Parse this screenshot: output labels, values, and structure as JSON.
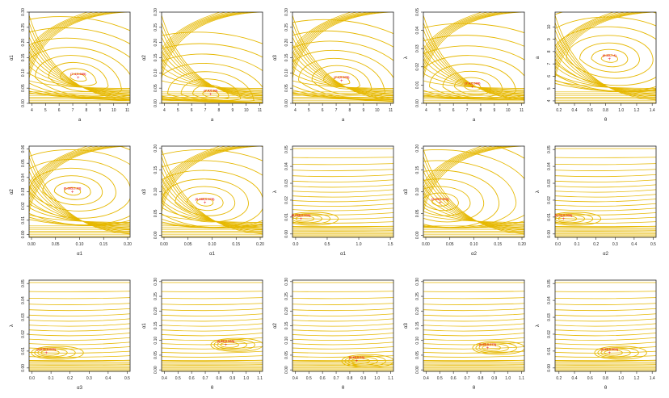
{
  "colors": {
    "contour": "#e6b800",
    "marker": "#e8222b",
    "axis": "#222222"
  },
  "chart_data": [
    {
      "type": "contour",
      "xlabel": "a",
      "ylabel": "α1",
      "xlim": [
        3.8,
        11.2
      ],
      "ylim": [
        0,
        0.3
      ],
      "xticks": [
        "4",
        "5",
        "6",
        "7",
        "8",
        "9",
        "10",
        "11"
      ],
      "yticks": [
        "0.00",
        "0.05",
        "0.10",
        "0.15",
        "0.20",
        "0.25",
        "0.30"
      ],
      "optimum": {
        "x": 7.4,
        "y": 0.085
      },
      "label": "(7.4,0.085)",
      "shape": "basin",
      "tilt": 0.3
    },
    {
      "type": "contour",
      "xlabel": "a",
      "ylabel": "α2",
      "xlim": [
        3.8,
        11.2
      ],
      "ylim": [
        0,
        0.3
      ],
      "xticks": [
        "4",
        "5",
        "6",
        "7",
        "8",
        "9",
        "10",
        "11"
      ],
      "yticks": [
        "0.00",
        "0.05",
        "0.10",
        "0.15",
        "0.20",
        "0.25",
        "0.30"
      ],
      "optimum": {
        "x": 7.4,
        "y": 0.03
      },
      "label": "(7.4,0.03)",
      "shape": "basin",
      "tilt": 0.2
    },
    {
      "type": "contour",
      "xlabel": "a",
      "ylabel": "α3",
      "xlim": [
        3.8,
        11.2
      ],
      "ylim": [
        0,
        0.3
      ],
      "xticks": [
        "4",
        "5",
        "6",
        "7",
        "8",
        "9",
        "10",
        "11"
      ],
      "yticks": [
        "0.00",
        "0.05",
        "0.10",
        "0.15",
        "0.20",
        "0.25",
        "0.30"
      ],
      "optimum": {
        "x": 7.4,
        "y": 0.075
      },
      "label": "(7.4,0.075)",
      "shape": "basin",
      "tilt": 0.3
    },
    {
      "type": "contour",
      "xlabel": "a",
      "ylabel": "λ",
      "xlim": [
        3.8,
        11.2
      ],
      "ylim": [
        0,
        0.05
      ],
      "xticks": [
        "4",
        "5",
        "6",
        "7",
        "8",
        "9",
        "10",
        "11"
      ],
      "yticks": [
        "0.00",
        "0.01",
        "0.02",
        "0.03",
        "0.04",
        "0.05"
      ],
      "optimum": {
        "x": 7.4,
        "y": 0.009
      },
      "label": "(7.4,0.009)",
      "shape": "basin",
      "tilt": 0.1
    },
    {
      "type": "contour",
      "xlabel": "θ",
      "ylabel": "a",
      "xlim": [
        0.15,
        1.45
      ],
      "ylim": [
        3.8,
        11.2
      ],
      "xticks": [
        "0.2",
        "0.4",
        "0.6",
        "0.8",
        "1.0",
        "1.2",
        "1.4"
      ],
      "yticks": [
        "4",
        "5",
        "6",
        "7",
        "8",
        "9",
        "10"
      ],
      "optimum": {
        "x": 0.85,
        "y": 7.4
      },
      "label": "(0.85,7.4)",
      "shape": "basin",
      "tilt": 0
    },
    {
      "type": "contour",
      "xlabel": "α1",
      "ylabel": "α2",
      "xlim": [
        -0.005,
        0.205
      ],
      "ylim": [
        -0.002,
        0.062
      ],
      "xticks": [
        "0.00",
        "0.05",
        "0.10",
        "0.15",
        "0.20"
      ],
      "yticks": [
        "0.00",
        "0.01",
        "0.02",
        "0.03",
        "0.04",
        "0.05",
        "0.06"
      ],
      "optimum": {
        "x": 0.085,
        "y": 0.03
      },
      "label": "(0.085,0.03)",
      "shape": "basin",
      "tilt": 0
    },
    {
      "type": "contour",
      "xlabel": "α1",
      "ylabel": "α3",
      "xlim": [
        -0.005,
        0.205
      ],
      "ylim": [
        -0.005,
        0.205
      ],
      "xticks": [
        "0.00",
        "0.05",
        "0.10",
        "0.15",
        "0.20"
      ],
      "yticks": [
        "0.00",
        "0.05",
        "0.10",
        "0.15",
        "0.20"
      ],
      "optimum": {
        "x": 0.085,
        "y": 0.075
      },
      "label": "(0.085,0.075)",
      "shape": "basin",
      "tilt": 0
    },
    {
      "type": "contour",
      "xlabel": "α1",
      "ylabel": "λ",
      "xlim": [
        -0.05,
        1.55
      ],
      "ylim": [
        -0.002,
        0.052
      ],
      "xticks": [
        "0.0",
        "0.5",
        "1.0",
        "1.5"
      ],
      "yticks": [
        "0.00",
        "0.01",
        "0.02",
        "0.03",
        "0.04",
        "0.05"
      ],
      "optimum": {
        "x": 0.085,
        "y": 0.009
      },
      "label": "(0.085,0.009)",
      "shape": "horizontal",
      "tilt": 0
    },
    {
      "type": "contour",
      "xlabel": "α2",
      "ylabel": "α3",
      "xlim": [
        -0.005,
        0.205
      ],
      "ylim": [
        -0.005,
        0.205
      ],
      "xticks": [
        "0.00",
        "0.05",
        "0.10",
        "0.15",
        "0.20"
      ],
      "yticks": [
        "0.00",
        "0.05",
        "0.10",
        "0.15",
        "0.20"
      ],
      "optimum": {
        "x": 0.03,
        "y": 0.075
      },
      "label": "(0.03,0.075)",
      "shape": "basin",
      "tilt": 0
    },
    {
      "type": "contour",
      "xlabel": "α2",
      "ylabel": "λ",
      "xlim": [
        -0.015,
        0.515
      ],
      "ylim": [
        -0.002,
        0.052
      ],
      "xticks": [
        "0.0",
        "0.1",
        "0.2",
        "0.3",
        "0.4",
        "0.5"
      ],
      "yticks": [
        "0.00",
        "0.01",
        "0.02",
        "0.03",
        "0.04",
        "0.05"
      ],
      "optimum": {
        "x": 0.03,
        "y": 0.009
      },
      "label": "(0.03,0.009)",
      "shape": "horizontal",
      "tilt": 0
    },
    {
      "type": "contour",
      "xlabel": "α3",
      "ylabel": "λ",
      "xlim": [
        -0.015,
        0.515
      ],
      "ylim": [
        -0.002,
        0.052
      ],
      "xticks": [
        "0.0",
        "0.1",
        "0.2",
        "0.3",
        "0.4",
        "0.5"
      ],
      "yticks": [
        "0.00",
        "0.01",
        "0.02",
        "0.03",
        "0.04",
        "0.05"
      ],
      "optimum": {
        "x": 0.075,
        "y": 0.009
      },
      "label": "(0.075,0.009)",
      "shape": "horizontal",
      "tilt": 0
    },
    {
      "type": "contour",
      "xlabel": "θ",
      "ylabel": "α1",
      "xlim": [
        0.38,
        1.12
      ],
      "ylim": [
        -0.005,
        0.305
      ],
      "xticks": [
        "0.4",
        "0.5",
        "0.6",
        "0.7",
        "0.8",
        "0.9",
        "1.0",
        "1.1"
      ],
      "yticks": [
        "0.00",
        "0.05",
        "0.10",
        "0.15",
        "0.20",
        "0.25",
        "0.30"
      ],
      "optimum": {
        "x": 0.85,
        "y": 0.085
      },
      "label": "(0.85,0.085)",
      "shape": "horizontal",
      "tilt": 0
    },
    {
      "type": "contour",
      "xlabel": "θ",
      "ylabel": "α2",
      "xlim": [
        0.38,
        1.12
      ],
      "ylim": [
        -0.005,
        0.305
      ],
      "xticks": [
        "0.4",
        "0.5",
        "0.6",
        "0.7",
        "0.8",
        "0.9",
        "1.0",
        "1.1"
      ],
      "yticks": [
        "0.00",
        "0.05",
        "0.10",
        "0.15",
        "0.20",
        "0.25",
        "0.30"
      ],
      "optimum": {
        "x": 0.85,
        "y": 0.03
      },
      "label": "(0.85,0.03)",
      "shape": "horizontal",
      "tilt": 0
    },
    {
      "type": "contour",
      "xlabel": "θ",
      "ylabel": "α3",
      "xlim": [
        0.38,
        1.12
      ],
      "ylim": [
        -0.005,
        0.305
      ],
      "xticks": [
        "0.4",
        "0.5",
        "0.6",
        "0.7",
        "0.8",
        "0.9",
        "1.0",
        "1.1"
      ],
      "yticks": [
        "0.00",
        "0.05",
        "0.10",
        "0.15",
        "0.20",
        "0.25",
        "0.30"
      ],
      "optimum": {
        "x": 0.85,
        "y": 0.075
      },
      "label": "(0.85,0.075)",
      "shape": "horizontal",
      "tilt": 0
    },
    {
      "type": "contour",
      "xlabel": "θ",
      "ylabel": "λ",
      "xlim": [
        0.15,
        1.45
      ],
      "ylim": [
        -0.002,
        0.052
      ],
      "xticks": [
        "0.2",
        "0.4",
        "0.6",
        "0.8",
        "1.0",
        "1.2",
        "1.4"
      ],
      "yticks": [
        "0.00",
        "0.01",
        "0.02",
        "0.03",
        "0.04",
        "0.05"
      ],
      "optimum": {
        "x": 0.85,
        "y": 0.009
      },
      "label": "(0.85,0.009)",
      "shape": "horizontal",
      "tilt": 0
    }
  ]
}
